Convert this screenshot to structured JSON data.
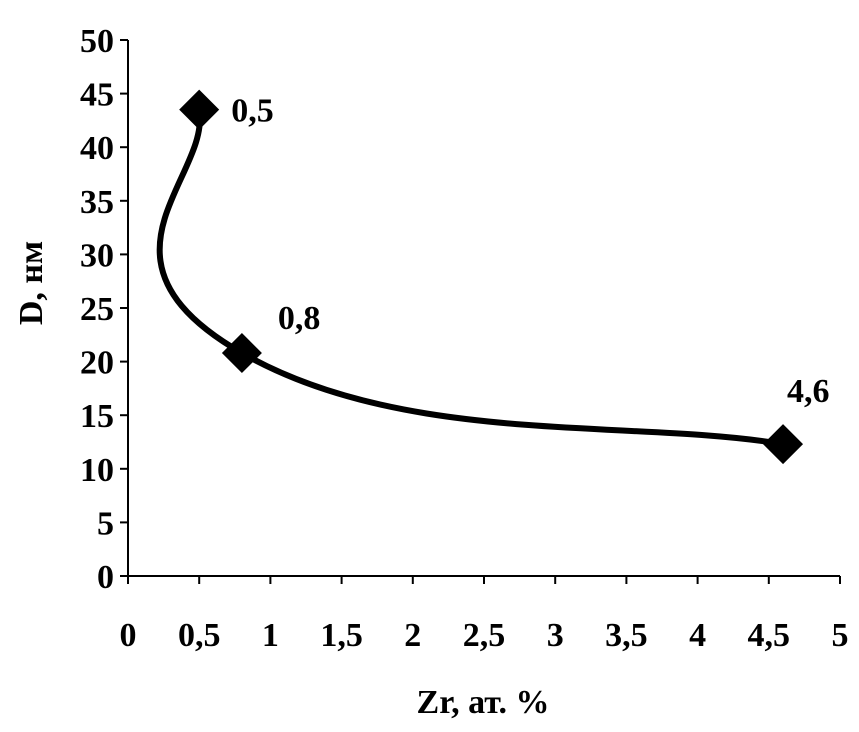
{
  "chart_data": {
    "type": "line",
    "title": "",
    "xlabel": "Zr, ат. %",
    "ylabel": "D, нм",
    "xlim": [
      0,
      5
    ],
    "ylim": [
      0,
      50
    ],
    "x_ticks": [
      0,
      0.5,
      1,
      1.5,
      2,
      2.5,
      3,
      3.5,
      4,
      4.5,
      5
    ],
    "x_tick_labels": [
      "0",
      "0,5",
      "1",
      "1,5",
      "2",
      "2,5",
      "3",
      "3,5",
      "4",
      "4,5",
      "5"
    ],
    "y_ticks": [
      0,
      5,
      10,
      15,
      20,
      25,
      30,
      35,
      40,
      45,
      50
    ],
    "y_tick_labels": [
      "0",
      "5",
      "10",
      "15",
      "20",
      "25",
      "30",
      "35",
      "40",
      "45",
      "50"
    ],
    "grid": false,
    "legend": "none",
    "series": [
      {
        "marker": "diamond",
        "smooth": true,
        "color": "#000000",
        "x": [
          0.5,
          0.8,
          4.6
        ],
        "y": [
          43.5,
          20.8,
          12.3
        ],
        "labels": [
          "0,5",
          "0,8",
          "4,6"
        ]
      }
    ]
  }
}
